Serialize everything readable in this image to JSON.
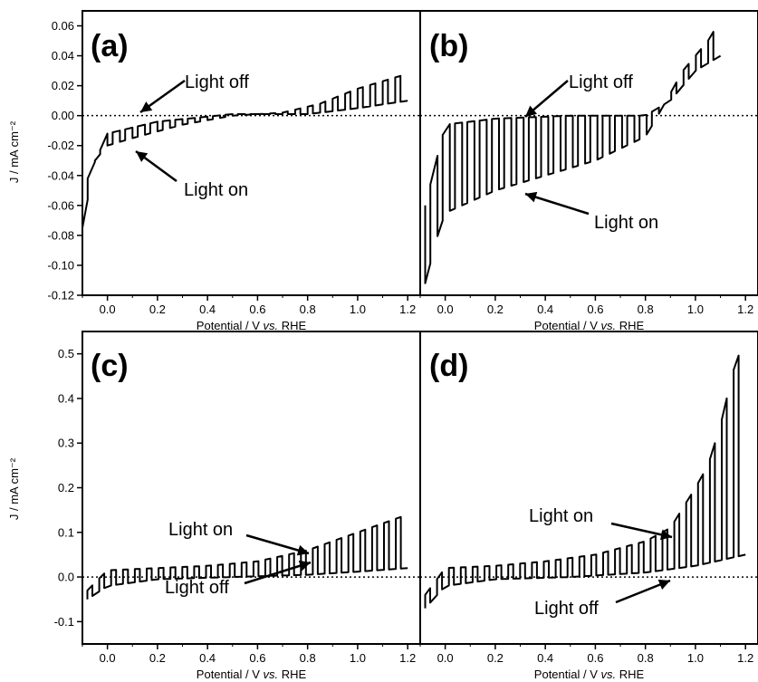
{
  "chart_data": [
    {
      "panel": "(a)",
      "type": "line",
      "xlabel_prefix": "Potential / V ",
      "xlabel_italic": "vs.",
      "xlabel_suffix": " RHE",
      "ylabel": "J / mA cm⁻²",
      "xlim": [
        -0.1,
        1.25
      ],
      "ylim": [
        -0.12,
        0.07
      ],
      "xticks": [
        "0.0",
        "0.2",
        "0.4",
        "0.6",
        "0.8",
        "1.0",
        "1.2"
      ],
      "yticks": [
        "0.06",
        "0.04",
        "0.02",
        "0.00",
        "-0.02",
        "-0.04",
        "-0.06",
        "-0.08",
        "-0.10",
        "-0.12"
      ],
      "annotations": [
        "Light off",
        "Light on"
      ],
      "chopped": {
        "x_start": -0.1,
        "x_end": 1.2,
        "n_pulses": 26,
        "dark": [
          [
            -0.1,
            -0.05
          ],
          [
            0.0,
            -0.012
          ],
          [
            0.2,
            -0.004
          ],
          [
            0.5,
            0.001
          ],
          [
            0.8,
            0.001
          ],
          [
            1.0,
            0.005
          ],
          [
            1.2,
            0.01
          ]
        ],
        "light": [
          [
            -0.1,
            -0.075
          ],
          [
            -0.05,
            -0.03
          ],
          [
            0.0,
            -0.02
          ],
          [
            0.1,
            -0.015
          ],
          [
            0.3,
            -0.006
          ],
          [
            0.5,
            0.0
          ],
          [
            0.7,
            0.002
          ],
          [
            0.85,
            0.008
          ],
          [
            1.0,
            0.018
          ],
          [
            1.2,
            0.028
          ]
        ]
      }
    },
    {
      "panel": "(b)",
      "type": "line",
      "xlabel_prefix": "Potential / V ",
      "xlabel_italic": "vs.",
      "xlabel_suffix": " RHE",
      "ylabel": "",
      "xlim": [
        -0.1,
        1.25
      ],
      "ylim": [
        -0.12,
        0.07
      ],
      "xticks": [
        "0.0",
        "0.2",
        "0.4",
        "0.6",
        "0.8",
        "1.0",
        "1.2"
      ],
      "yticks": [],
      "annotations": [
        "Light off",
        "Light on"
      ],
      "chopped": {
        "x_start": -0.08,
        "x_end": 1.1,
        "n_pulses": 24,
        "dark": [
          [
            -0.08,
            -0.06
          ],
          [
            0.0,
            -0.006
          ],
          [
            0.2,
            -0.002
          ],
          [
            0.5,
            0.0
          ],
          [
            0.8,
            0.0
          ],
          [
            0.9,
            0.01
          ],
          [
            1.0,
            0.03
          ],
          [
            1.1,
            0.04
          ]
        ],
        "light": [
          [
            -0.08,
            -0.112
          ],
          [
            -0.03,
            -0.08
          ],
          [
            0.0,
            -0.065
          ],
          [
            0.2,
            -0.05
          ],
          [
            0.4,
            -0.04
          ],
          [
            0.6,
            -0.03
          ],
          [
            0.8,
            -0.014
          ],
          [
            0.85,
            0.0
          ],
          [
            0.95,
            0.03
          ],
          [
            1.05,
            0.05
          ],
          [
            1.1,
            0.064
          ]
        ]
      }
    },
    {
      "panel": "(c)",
      "type": "line",
      "xlabel_prefix": "Potential / V ",
      "xlabel_italic": "vs.",
      "xlabel_suffix": " RHE",
      "ylabel": "J / mA cm⁻²",
      "xlim": [
        -0.1,
        1.25
      ],
      "ylim": [
        -0.15,
        0.55
      ],
      "xticks": [
        "0.0",
        "0.2",
        "0.4",
        "0.6",
        "0.8",
        "1.0",
        "1.2"
      ],
      "yticks": [
        "0.5",
        "0.4",
        "0.3",
        "0.2",
        "0.1",
        "0.0",
        "-0.1"
      ],
      "annotations": [
        "Light on",
        "Light off"
      ],
      "chopped": {
        "x_start": -0.08,
        "x_end": 1.2,
        "n_pulses": 27,
        "dark": [
          [
            -0.08,
            -0.05
          ],
          [
            0.0,
            -0.02
          ],
          [
            0.2,
            -0.005
          ],
          [
            0.5,
            0.0
          ],
          [
            0.8,
            0.005
          ],
          [
            1.0,
            0.012
          ],
          [
            1.2,
            0.02
          ]
        ],
        "light": [
          [
            -0.08,
            -0.03
          ],
          [
            0.0,
            0.015
          ],
          [
            0.2,
            0.02
          ],
          [
            0.4,
            0.025
          ],
          [
            0.6,
            0.035
          ],
          [
            0.8,
            0.06
          ],
          [
            1.0,
            0.1
          ],
          [
            1.2,
            0.14
          ]
        ]
      }
    },
    {
      "panel": "(d)",
      "type": "line",
      "xlabel_prefix": "Potential / V ",
      "xlabel_italic": "vs.",
      "xlabel_suffix": " RHE",
      "ylabel": "",
      "xlim": [
        -0.1,
        1.25
      ],
      "ylim": [
        -0.15,
        0.55
      ],
      "xticks": [
        "0.0",
        "0.2",
        "0.4",
        "0.6",
        "0.8",
        "1.0",
        "1.2"
      ],
      "yticks": [],
      "annotations": [
        "Light on",
        "Light off"
      ],
      "chopped": {
        "x_start": -0.08,
        "x_end": 1.2,
        "n_pulses": 27,
        "dark": [
          [
            -0.08,
            -0.07
          ],
          [
            0.0,
            -0.02
          ],
          [
            0.2,
            -0.005
          ],
          [
            0.5,
            0.0
          ],
          [
            0.8,
            0.01
          ],
          [
            1.0,
            0.025
          ],
          [
            1.2,
            0.05
          ]
        ],
        "light": [
          [
            -0.08,
            -0.04
          ],
          [
            0.0,
            0.02
          ],
          [
            0.2,
            0.025
          ],
          [
            0.4,
            0.035
          ],
          [
            0.6,
            0.05
          ],
          [
            0.8,
            0.08
          ],
          [
            0.9,
            0.11
          ],
          [
            1.0,
            0.2
          ],
          [
            1.05,
            0.25
          ],
          [
            1.1,
            0.34
          ],
          [
            1.15,
            0.46
          ],
          [
            1.2,
            0.54
          ]
        ]
      }
    }
  ]
}
